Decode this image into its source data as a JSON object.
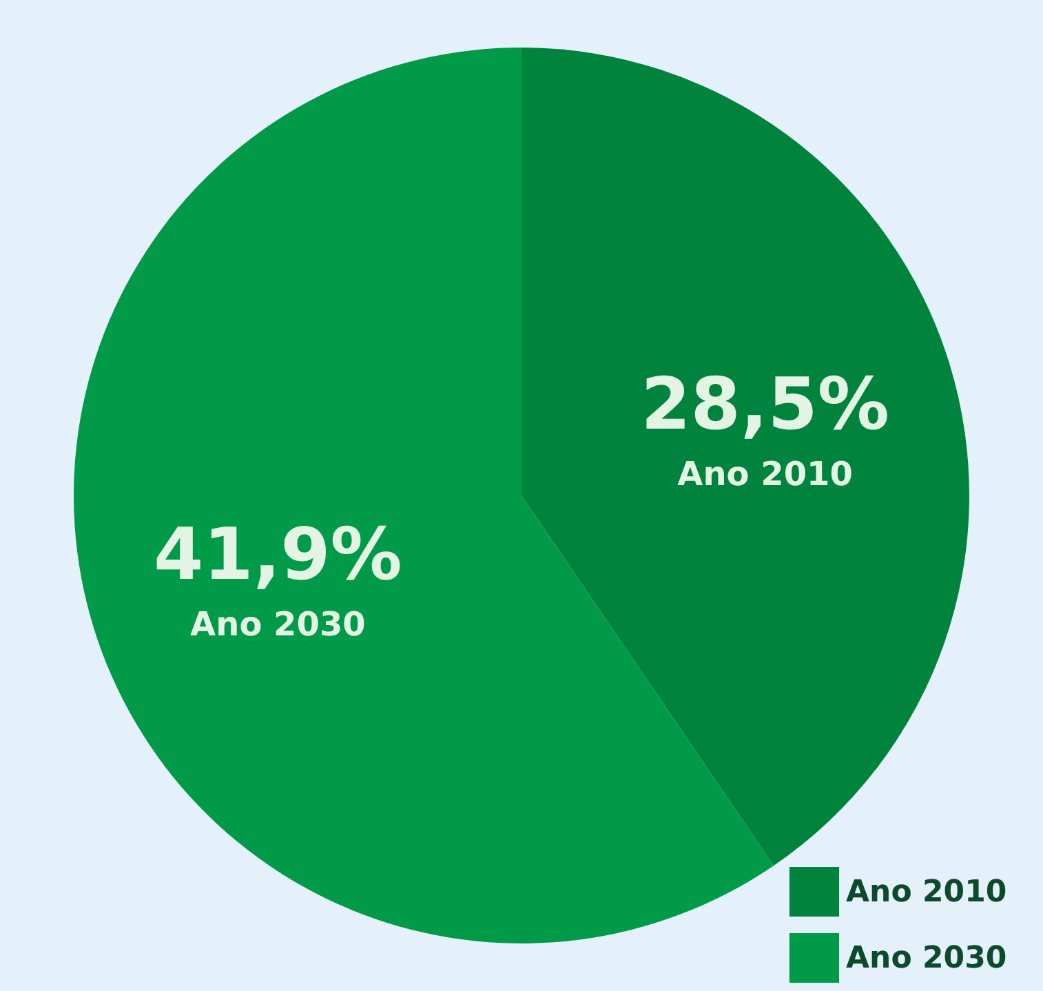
{
  "chart_data": {
    "type": "pie",
    "categories": [
      "Ano 2010",
      "Ano 2030"
    ],
    "values": [
      28.5,
      41.9
    ],
    "value_labels": [
      "28,5%",
      "41,9%"
    ],
    "colors": [
      "#00833d",
      "#009a48"
    ],
    "legend": "bottom right"
  }
}
